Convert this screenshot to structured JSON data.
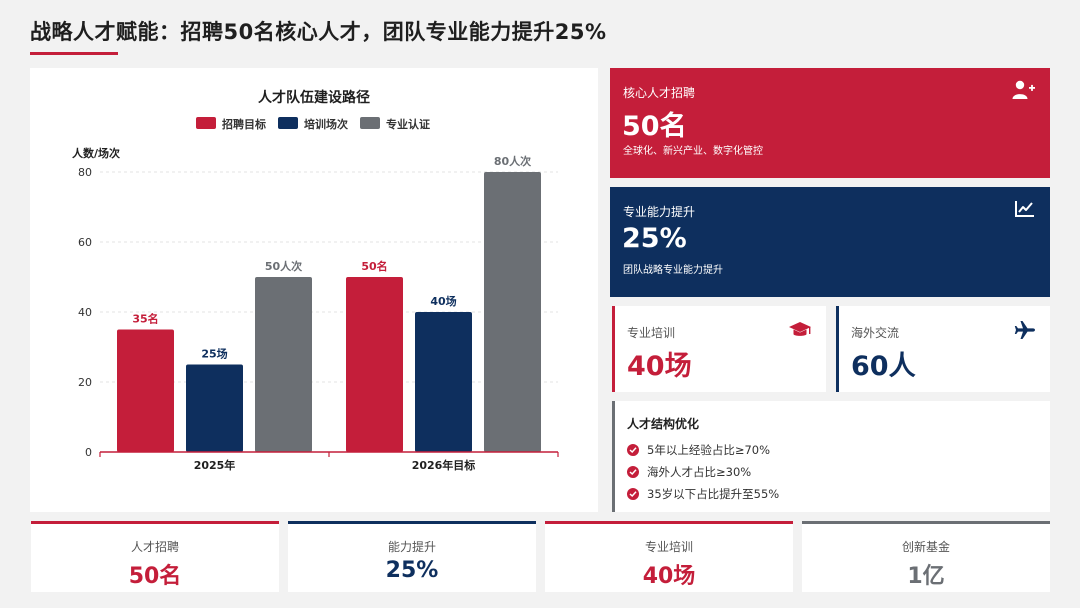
{
  "header": {
    "title": "战略人才赋能：招聘50名核心人才，团队专业能力提升25%"
  },
  "chart_data": {
    "type": "bar",
    "title": "人才队伍建设路径",
    "ylabel": "人数/场次",
    "xlabel": "",
    "categories": [
      "2025年",
      "2026年目标"
    ],
    "series": [
      {
        "name": "招聘目标",
        "color": "#c41e3a",
        "values": [
          35,
          50
        ],
        "labels": [
          "35名",
          "50名"
        ]
      },
      {
        "name": "培训场次",
        "color": "#0e2f5e",
        "values": [
          25,
          40
        ],
        "labels": [
          "25场",
          "40场"
        ]
      },
      {
        "name": "专业认证",
        "color": "#6b6f74",
        "values": [
          50,
          80
        ],
        "labels": [
          "50人次",
          "80人次"
        ]
      }
    ],
    "ylim": [
      0,
      80
    ],
    "yticks": [
      0,
      20,
      40,
      60,
      80
    ],
    "grid": true,
    "legend": "top-center"
  },
  "cards": {
    "recruit": {
      "label": "核心人才招聘",
      "value": "50名",
      "desc": "全球化、新兴产业、数字化管控",
      "icon": "add-user-icon",
      "color": "#c41e3a"
    },
    "ability": {
      "label": "专业能力提升",
      "value": "25%",
      "desc": "团队战略专业能力提升",
      "icon": "line-chart-icon",
      "color": "#0e2f5e"
    },
    "training": {
      "label": "专业培训",
      "value": "40场",
      "icon": "graduation-cap-icon",
      "color": "#c41e3a"
    },
    "overseas": {
      "label": "海外交流",
      "value": "60人",
      "icon": "airplane-icon",
      "color": "#0e2f5e"
    }
  },
  "structure": {
    "title": "人才结构优化",
    "items": [
      "5年以上经验占比≥70%",
      "海外人才占比≥30%",
      "35岁以下占比提升至55%"
    ]
  },
  "bottom": [
    {
      "label": "人才招聘",
      "value": "50名",
      "color": "#c41e3a"
    },
    {
      "label": "能力提升",
      "value": "25%",
      "color": "#0e2f5e"
    },
    {
      "label": "专业培训",
      "value": "40场",
      "color": "#c41e3a"
    },
    {
      "label": "创新基金",
      "value": "1亿",
      "color": "#6b6f74"
    }
  ]
}
